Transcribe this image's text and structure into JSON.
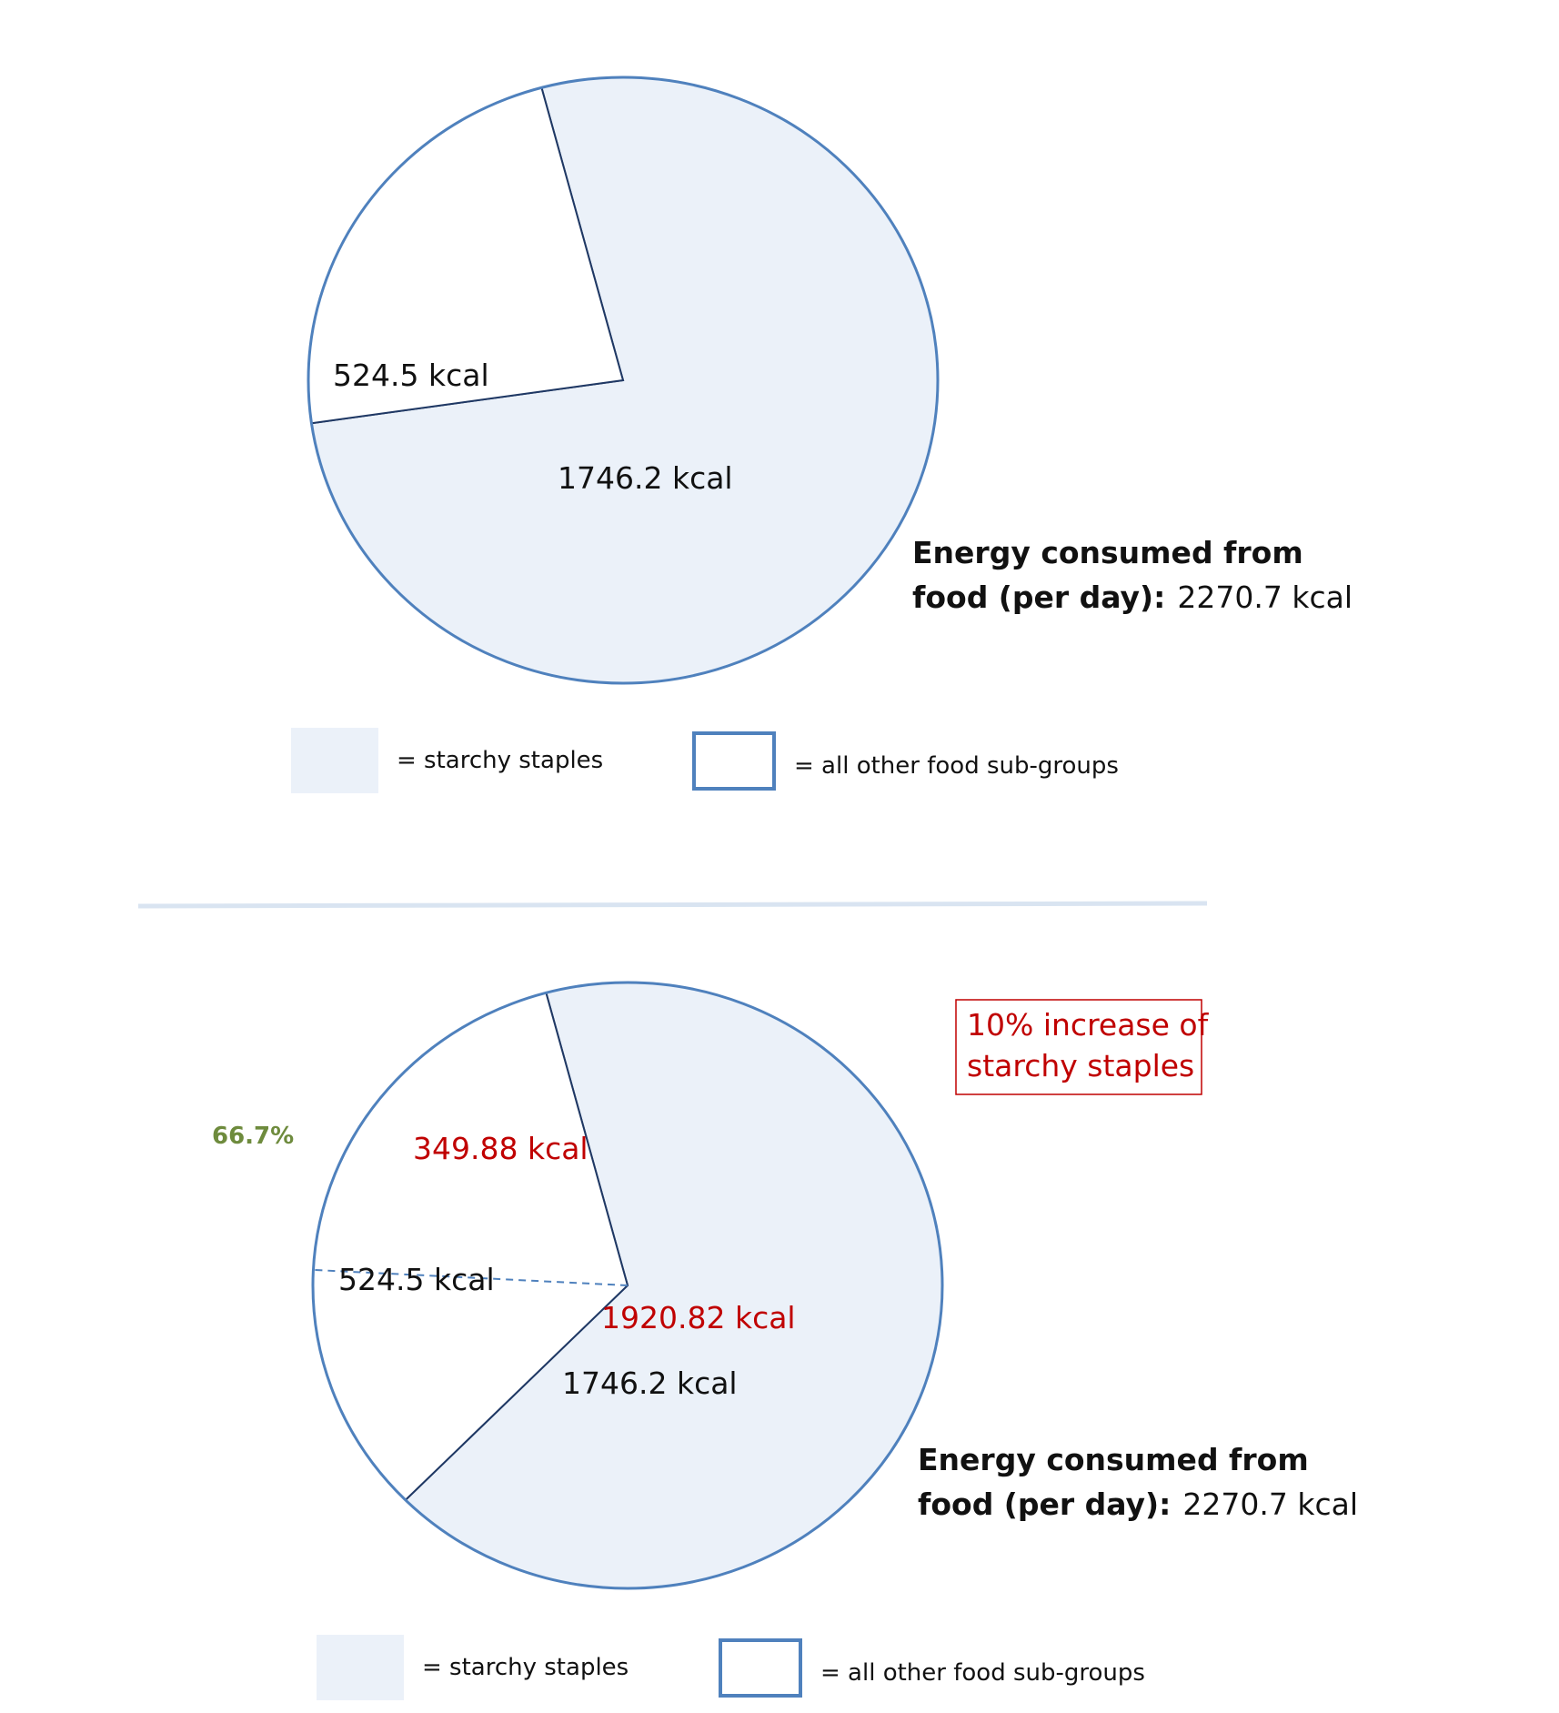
{
  "colors": {
    "starchy_fill": "#ebf1f9",
    "outline": "#4f81bd",
    "divider": "#d9e4f1",
    "highlight_red": "#c00000",
    "percent_green": "#6e8b3d"
  },
  "chart_data": [
    {
      "type": "pie",
      "slices": [
        {
          "label": "1746.2 kcal",
          "value": 1746.2,
          "series": "starchy staples"
        },
        {
          "label": "524.5 kcal",
          "value": 524.5,
          "series": "all other food sub-groups"
        }
      ],
      "summary": {
        "label": "Energy consumed from food (per day):",
        "label_line1": "Energy consumed from",
        "label_line2": "food (per day):",
        "value": "2270.7 kcal"
      },
      "legend": [
        {
          "text": "= starchy staples",
          "swatch": "filled"
        },
        {
          "text": "= all other food sub-groups",
          "swatch": "outline"
        }
      ]
    },
    {
      "type": "pie",
      "slices": [
        {
          "label": "1746.2 kcal",
          "value": 1746.2,
          "series": "starchy staples"
        },
        {
          "label": "349.88 kcal",
          "value": 349.88,
          "series": "all other food sub-groups"
        },
        {
          "label": "524.5 kcal",
          "value": 524.5,
          "series": "all other food sub-groups"
        }
      ],
      "annotations": {
        "increased_starchy": "1920.82 kcal",
        "note_line1": "10% increase of",
        "note_line2": "starchy staples",
        "percent": "66.7%"
      },
      "summary": {
        "label": "Energy consumed from food (per day):",
        "label_line1": "Energy consumed from",
        "label_line2": "food (per day):",
        "value": "2270.7 kcal"
      },
      "legend": [
        {
          "text": "= starchy staples",
          "swatch": "filled"
        },
        {
          "text": "= all other food sub-groups",
          "swatch": "outline"
        }
      ]
    }
  ]
}
